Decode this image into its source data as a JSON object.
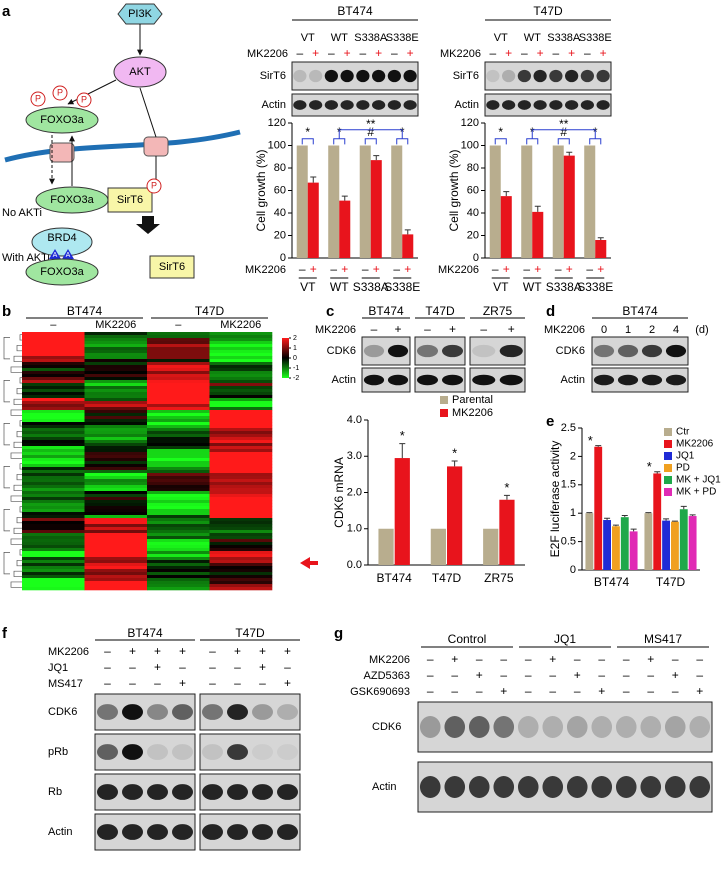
{
  "panel_labels": [
    "a",
    "b",
    "c",
    "d",
    "e",
    "f",
    "g"
  ],
  "diagram": {
    "pi3k": "PI3K",
    "akt": "AKT",
    "foxo3a": [
      "FOXO3a",
      "FOXO3a",
      "FOXO3a"
    ],
    "phospho": [
      "P",
      "P",
      "P",
      "P"
    ],
    "sirt6": [
      "SirT6",
      "SirT6"
    ],
    "no_akti": "No AKTi",
    "with_akti": "With AKTi",
    "brd4": "BRD4",
    "acetyl": [
      "A",
      "A"
    ]
  },
  "panel_a_blots": [
    {
      "title": "BT474",
      "lanes": [
        "VT",
        "WT",
        "S338A",
        "S338E"
      ],
      "treatment": "MK2206",
      "signs": [
        "–",
        "+",
        "–",
        "+",
        "–",
        "+",
        "–",
        "+"
      ],
      "rows": [
        "SirT6",
        "Actin"
      ]
    },
    {
      "title": "T47D",
      "lanes": [
        "VT",
        "WT",
        "S338A",
        "S338E"
      ],
      "treatment": "MK2206",
      "signs": [
        "–",
        "+",
        "–",
        "+",
        "–",
        "+",
        "–",
        "+"
      ],
      "rows": [
        "SirT6",
        "Actin"
      ]
    }
  ],
  "panel_b": {
    "groups": [
      "BT474",
      "T47D"
    ],
    "conditions": [
      "–",
      "MK2206",
      "–",
      "MK2206"
    ],
    "scale_ticks": [
      2,
      1,
      0,
      -1,
      -2
    ],
    "colormap": [
      "#ff1a1a",
      "#000000",
      "#1aff1a"
    ]
  },
  "panel_c_blot": {
    "groups": [
      "BT474",
      "T47D",
      "ZR75"
    ],
    "treatment": "MK2206",
    "signs": [
      "–",
      "+",
      "–",
      "+",
      "–",
      "+"
    ],
    "rows": [
      "CDK6",
      "Actin"
    ]
  },
  "panel_d_blot": {
    "title": "BT474",
    "treatment": "MK2206",
    "timepoints": [
      0,
      1,
      2,
      4
    ],
    "unit": "(d)",
    "rows": [
      "CDK6",
      "Actin"
    ]
  },
  "panel_f_blot": {
    "groups": [
      "BT474",
      "T47D"
    ],
    "treatments": [
      {
        "name": "MK2206",
        "signs": [
          "–",
          "+",
          "+",
          "+",
          "–",
          "+",
          "+",
          "+"
        ]
      },
      {
        "name": "JQ1",
        "signs": [
          "–",
          "–",
          "+",
          "–",
          "–",
          "–",
          "+",
          "–"
        ]
      },
      {
        "name": "MS417",
        "signs": [
          "–",
          "–",
          "–",
          "+",
          "–",
          "–",
          "–",
          "+"
        ]
      }
    ],
    "rows": [
      "CDK6",
      "pRb",
      "Rb",
      "Actin"
    ]
  },
  "panel_g_blot": {
    "groups": [
      "Control",
      "JQ1",
      "MS417"
    ],
    "treatments": [
      {
        "name": "MK2206",
        "signs": [
          "–",
          "+",
          "–",
          "–",
          "–",
          "+",
          "–",
          "–",
          "–",
          "+",
          "–",
          "–"
        ]
      },
      {
        "name": "AZD5363",
        "signs": [
          "–",
          "–",
          "+",
          "–",
          "–",
          "–",
          "+",
          "–",
          "–",
          "–",
          "+",
          "–"
        ]
      },
      {
        "name": "GSK690693",
        "signs": [
          "–",
          "–",
          "–",
          "+",
          "–",
          "–",
          "–",
          "+",
          "–",
          "–",
          "–",
          "+"
        ]
      }
    ],
    "rows": [
      "CDK6",
      "Actin"
    ]
  },
  "chart_data": [
    {
      "type": "bar",
      "ylabel": "Cell growth (%)",
      "treatment": "MK2206",
      "categories": [
        "VT",
        "WT",
        "S338A",
        "S338E"
      ],
      "series": [
        {
          "name": "–",
          "color": "#b8ad8e",
          "values": [
            100,
            100,
            100,
            100
          ]
        },
        {
          "name": "+",
          "color": "#e8141c",
          "values": [
            67,
            51,
            87,
            21
          ],
          "errors": [
            5,
            4,
            4,
            4
          ]
        }
      ],
      "ylim": [
        0,
        120
      ],
      "yticks": [
        0,
        20,
        40,
        60,
        80,
        100,
        120
      ],
      "annotations": [
        "*",
        "*",
        "#",
        "*",
        "**"
      ]
    },
    {
      "type": "bar",
      "ylabel": "Cell growth (%)",
      "treatment": "MK2206",
      "categories": [
        "VT",
        "WT",
        "S338A",
        "S338E"
      ],
      "series": [
        {
          "name": "–",
          "color": "#b8ad8e",
          "values": [
            100,
            100,
            100,
            100
          ]
        },
        {
          "name": "+",
          "color": "#e8141c",
          "values": [
            55,
            41,
            91,
            16
          ],
          "errors": [
            4,
            5,
            3,
            2
          ]
        }
      ],
      "ylim": [
        0,
        120
      ],
      "yticks": [
        0,
        20,
        40,
        60,
        80,
        100,
        120
      ],
      "annotations": [
        "*",
        "*",
        "#",
        "*",
        "**"
      ]
    },
    {
      "type": "bar",
      "ylabel": "CDK6 mRNA",
      "categories": [
        "BT474",
        "T47D",
        "ZR75"
      ],
      "series": [
        {
          "name": "Parental",
          "color": "#b8ad8e",
          "values": [
            1,
            1,
            1
          ]
        },
        {
          "name": "MK2206",
          "color": "#e8141c",
          "values": [
            2.95,
            2.72,
            1.8
          ],
          "errors": [
            0.4,
            0.15,
            0.12
          ]
        }
      ],
      "ylim": [
        0,
        4
      ],
      "yticks": [
        {
          "value": 0,
          "label": "0.0"
        },
        {
          "value": 1,
          "label": "1.0"
        },
        {
          "value": 2,
          "label": "2.0"
        },
        {
          "value": 3,
          "label": "3.0"
        },
        {
          "value": 4,
          "label": "4.0"
        }
      ],
      "legend": "top-right",
      "annotations": [
        "*",
        "*",
        "*"
      ]
    },
    {
      "type": "bar",
      "ylabel": "E2F luciferase activity",
      "categories": [
        "BT474",
        "T47D"
      ],
      "series": [
        {
          "name": "Ctr",
          "color": "#b8ad8e",
          "values": [
            1,
            1
          ],
          "errors": [
            0.01,
            0.01
          ]
        },
        {
          "name": "MK2206",
          "color": "#e8141c",
          "values": [
            2.17,
            1.7
          ],
          "errors": [
            0.02,
            0.03
          ]
        },
        {
          "name": "JQ1",
          "color": "#1f2bd6",
          "values": [
            0.88,
            0.87
          ],
          "errors": [
            0.03,
            0.03
          ]
        },
        {
          "name": "PD",
          "color": "#f0a020",
          "values": [
            0.77,
            0.85
          ],
          "errors": [
            0.02,
            0.01
          ]
        },
        {
          "name": "MK + JQ1",
          "color": "#1fa84a",
          "values": [
            0.93,
            1.07
          ],
          "errors": [
            0.03,
            0.05
          ]
        },
        {
          "name": "MK + PD",
          "color": "#e02ab4",
          "values": [
            0.68,
            0.95
          ],
          "errors": [
            0.04,
            0.02
          ]
        }
      ],
      "ylim": [
        0,
        2.5
      ],
      "yticks": [
        0,
        0.5,
        1,
        1.5,
        2,
        2.5
      ],
      "legend": "top-right",
      "annotations": [
        "*",
        "*"
      ]
    }
  ]
}
